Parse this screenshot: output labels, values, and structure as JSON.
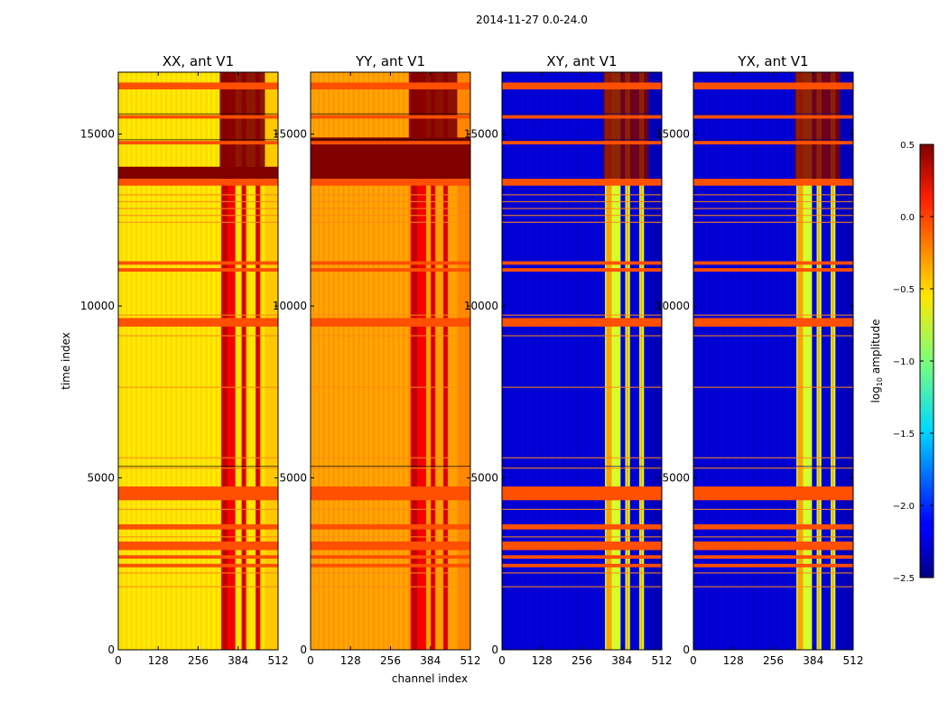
{
  "chart_data": {
    "type": "heatmap",
    "suptitle": "2014-11-27 0.0-24.0",
    "xlabel": "channel index",
    "ylabel": "time index",
    "xlim": [
      0,
      512
    ],
    "ylim": [
      0,
      16800
    ],
    "x_ticks": [
      0,
      128,
      256,
      384,
      512
    ],
    "y_ticks": [
      0,
      5000,
      10000,
      15000
    ],
    "colorbar": {
      "label_main": "log",
      "label_sub": "10",
      "label_rest": " amplitude",
      "colormap": "jet",
      "vmin": -2.5,
      "vmax": 0.5,
      "ticks": [
        0.5,
        0.0,
        -0.5,
        -1.0,
        -1.5,
        -2.0,
        -2.5
      ],
      "tick_labels": [
        "0.5",
        "0.0",
        "−0.5",
        "−1.0",
        "−1.5",
        "−2.0",
        "−2.5"
      ]
    },
    "panels": [
      {
        "title": "XX, ant V1",
        "base_level": -0.55,
        "rfi_channels": [
          [
            330,
            375
          ],
          [
            395,
            410
          ],
          [
            440,
            455
          ]
        ]
      },
      {
        "title": "YY, ant V1",
        "base_level": -0.35,
        "rfi_channels": [
          [
            320,
            370
          ],
          [
            385,
            400
          ],
          [
            425,
            440
          ]
        ]
      },
      {
        "title": "XY, ant V1",
        "base_level": -2.25,
        "rfi_channels": [
          [
            330,
            380
          ],
          [
            395,
            410
          ],
          [
            440,
            455
          ]
        ]
      },
      {
        "title": "YX, ant V1",
        "base_level": -2.25,
        "rfi_channels": [
          [
            330,
            380
          ],
          [
            395,
            410
          ],
          [
            440,
            455
          ]
        ]
      }
    ],
    "flagged_time_bands": [
      [
        16300,
        16500
      ],
      [
        15450,
        15550
      ],
      [
        14700,
        14800
      ],
      [
        13500,
        13700
      ],
      [
        11000,
        11100
      ],
      [
        11200,
        11300
      ],
      [
        9400,
        9650
      ],
      [
        4350,
        4750
      ],
      [
        3500,
        3650
      ],
      [
        2900,
        3150
      ],
      [
        2650,
        2750
      ],
      [
        2400,
        2500
      ]
    ]
  }
}
